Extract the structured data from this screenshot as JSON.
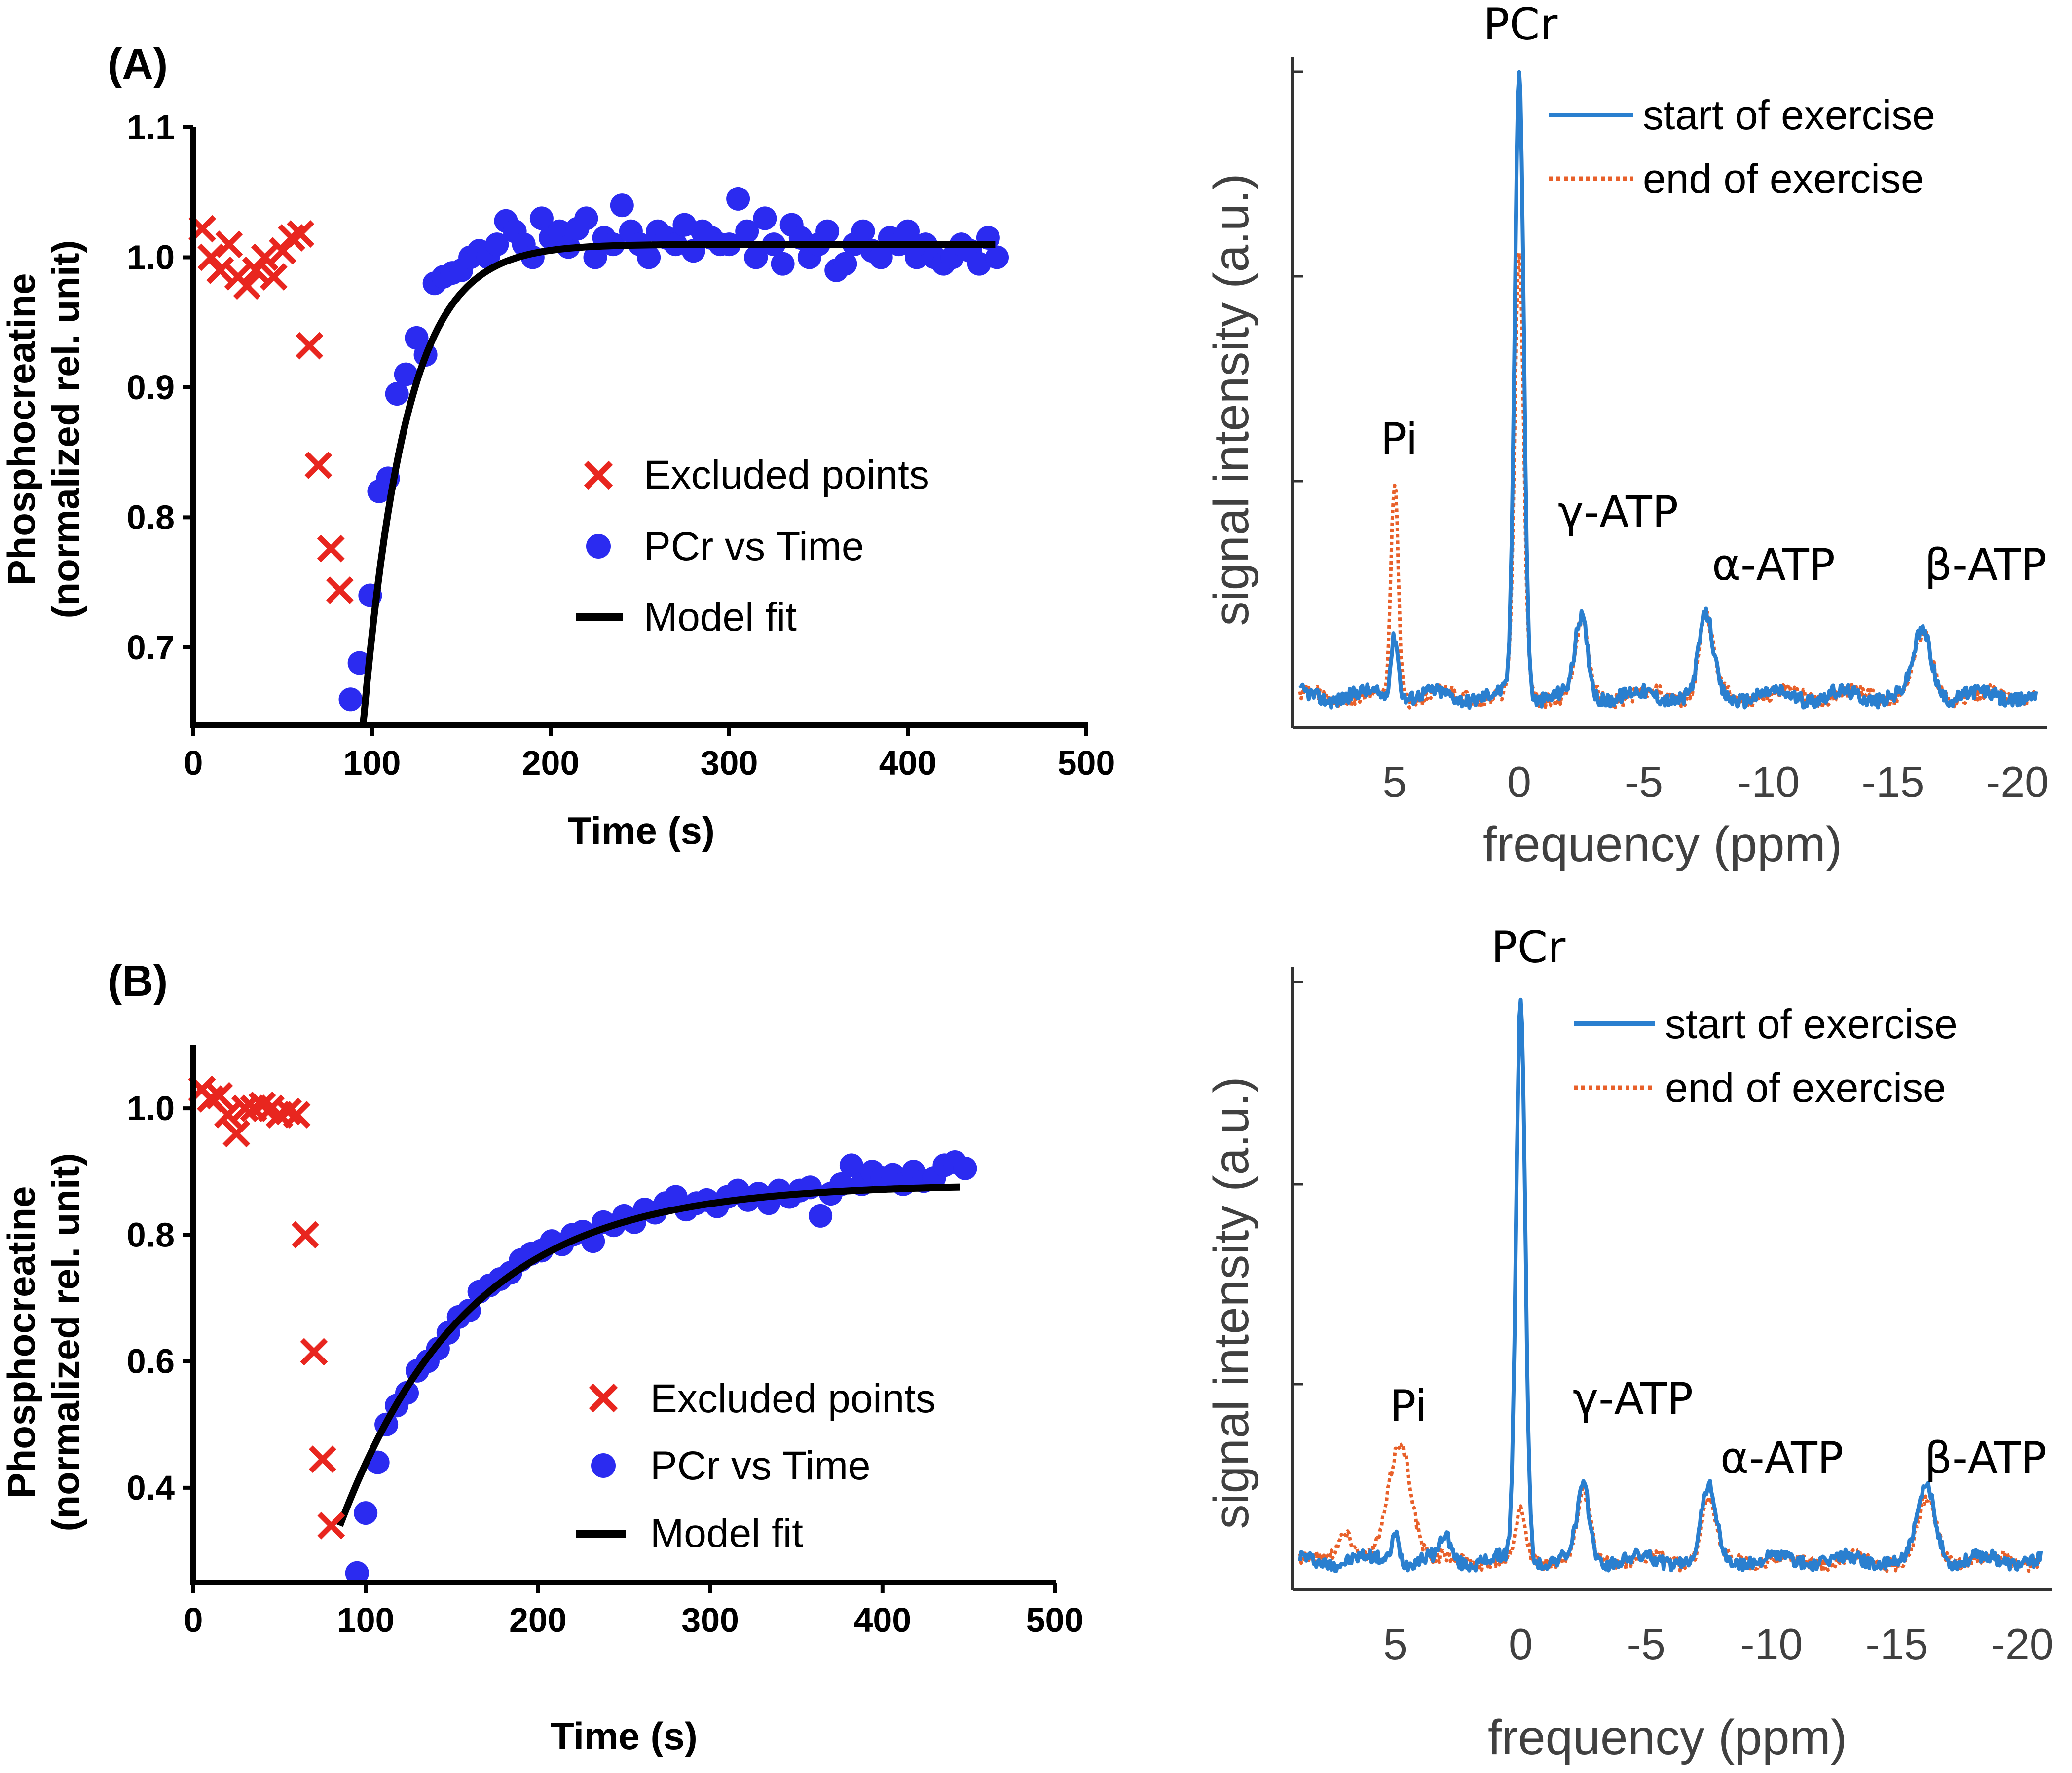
{
  "colors": {
    "excluded": "#e8261f",
    "pcr": "#2b2bf0",
    "fit": "#000000",
    "start": "#2a7fcf",
    "end": "#e8602a"
  },
  "chart_data": [
    {
      "panel": "(A)",
      "type": "scatter",
      "xlabel": "Time (s)",
      "ylabel_line1": "Phosphocreatine",
      "ylabel_line2": "(normalized  rel. unit)",
      "xlim": [
        0,
        500
      ],
      "ylim": [
        0.64,
        1.1
      ],
      "xticks": [
        "0",
        "100",
        "200",
        "300",
        "400",
        "500"
      ],
      "yticks": [
        {
          "v": 0.7,
          "label": "0.7"
        },
        {
          "v": 0.8,
          "label": "0.8"
        },
        {
          "v": 0.9,
          "label": "0.9"
        },
        {
          "v": 1.0,
          "label": "1.0"
        },
        {
          "v": 1.1,
          "label": "1.1"
        }
      ],
      "legend": {
        "excluded": "Excluded points",
        "pcr": "PCr vs Time",
        "fit": "Model fit"
      },
      "fit": {
        "t0": 95,
        "y0": 0.64,
        "yinf": 1.01,
        "tau": 24,
        "tend": 450
      },
      "series": [
        {
          "name": "Excluded points",
          "x": [
            5,
            10,
            15,
            20,
            25,
            30,
            35,
            40,
            45,
            50,
            55,
            60,
            65,
            70,
            77,
            82
          ],
          "y": [
            1.022,
            1.0,
            0.99,
            1.01,
            0.985,
            0.978,
            0.99,
            1.0,
            0.985,
            1.005,
            1.015,
            1.018,
            0.932,
            0.84,
            0.776,
            0.744
          ]
        },
        {
          "name": "PCr vs Time",
          "x": [
            88,
            93,
            99,
            104,
            109,
            114,
            119,
            125,
            130,
            135,
            140,
            145,
            150,
            155,
            160,
            165,
            170,
            175,
            180,
            185,
            190,
            195,
            200,
            205,
            210,
            215,
            220,
            225,
            230,
            235,
            240,
            245,
            250,
            255,
            260,
            265,
            270,
            275,
            280,
            285,
            290,
            295,
            300,
            305,
            310,
            315,
            320,
            325,
            330,
            335,
            340,
            345,
            350,
            355,
            360,
            365,
            370,
            375,
            380,
            385,
            390,
            395,
            400,
            405,
            410,
            415,
            420,
            425,
            430,
            435,
            440,
            445,
            450
          ],
          "y": [
            0.66,
            0.688,
            0.74,
            0.82,
            0.83,
            0.895,
            0.91,
            0.938,
            0.925,
            0.98,
            0.985,
            0.988,
            0.99,
            1.0,
            1.005,
            1.0,
            1.01,
            1.028,
            1.02,
            1.01,
            1.0,
            1.03,
            1.015,
            1.02,
            1.008,
            1.022,
            1.03,
            1.0,
            1.015,
            1.01,
            1.04,
            1.02,
            1.01,
            1.0,
            1.02,
            1.015,
            1.01,
            1.025,
            1.005,
            1.02,
            1.015,
            1.01,
            1.01,
            1.045,
            1.02,
            1.0,
            1.03,
            1.01,
            0.995,
            1.025,
            1.015,
            1.0,
            1.01,
            1.02,
            0.99,
            0.995,
            1.01,
            1.02,
            1.005,
            1.0,
            1.015,
            1.01,
            1.02,
            1.0,
            1.01,
            1.0,
            0.995,
            1.0,
            1.01,
            1.005,
            0.995,
            1.015,
            1.0
          ]
        }
      ]
    },
    {
      "panel": "(B)",
      "type": "scatter",
      "xlabel": "Time (s)",
      "ylabel_line1": "Phosphocreatine",
      "ylabel_line2": "(normalized  rel. unit)",
      "xlim": [
        0,
        500
      ],
      "ylim": [
        0.25,
        1.1
      ],
      "xticks": [
        "0",
        "100",
        "200",
        "300",
        "400",
        "500"
      ],
      "yticks": [
        {
          "v": 0.4,
          "label": "0.4"
        },
        {
          "v": 0.6,
          "label": "0.6"
        },
        {
          "v": 0.8,
          "label": "0.8"
        },
        {
          "v": 1.0,
          "label": "1.0"
        }
      ],
      "legend": {
        "excluded": "Excluded points",
        "pcr": "PCr vs Time",
        "fit": "Model fit"
      },
      "fit": {
        "t0": 85,
        "y0": 0.34,
        "yinf": 0.88,
        "tau": 75,
        "tend": 445
      },
      "series": [
        {
          "name": "Excluded points",
          "x": [
            5,
            10,
            15,
            20,
            25,
            30,
            35,
            40,
            45,
            50,
            55,
            60,
            65,
            70,
            75,
            80
          ],
          "y": [
            1.03,
            1.015,
            1.02,
            0.99,
            0.96,
            1.0,
            1.0,
            1.005,
            1.0,
            0.99,
            0.995,
            0.99,
            0.8,
            0.615,
            0.445,
            0.34
          ]
        },
        {
          "name": "PCr vs Time",
          "x": [
            95,
            100,
            107,
            112,
            118,
            124,
            130,
            136,
            142,
            148,
            154,
            160,
            166,
            172,
            178,
            184,
            190,
            196,
            202,
            208,
            214,
            220,
            226,
            232,
            238,
            244,
            250,
            256,
            262,
            268,
            274,
            280,
            286,
            292,
            298,
            304,
            310,
            316,
            322,
            328,
            334,
            340,
            346,
            352,
            358,
            364,
            370,
            376,
            382,
            388,
            394,
            400,
            406,
            412,
            418,
            424,
            430,
            436,
            442,
            448
          ],
          "y": [
            0.265,
            0.36,
            0.44,
            0.5,
            0.53,
            0.55,
            0.585,
            0.6,
            0.62,
            0.645,
            0.67,
            0.68,
            0.71,
            0.72,
            0.73,
            0.74,
            0.76,
            0.77,
            0.775,
            0.79,
            0.785,
            0.8,
            0.805,
            0.79,
            0.82,
            0.815,
            0.83,
            0.82,
            0.84,
            0.835,
            0.85,
            0.86,
            0.84,
            0.85,
            0.855,
            0.845,
            0.86,
            0.87,
            0.855,
            0.865,
            0.85,
            0.87,
            0.86,
            0.87,
            0.875,
            0.83,
            0.865,
            0.88,
            0.91,
            0.88,
            0.9,
            0.89,
            0.895,
            0.88,
            0.9,
            0.885,
            0.89,
            0.91,
            0.915,
            0.905
          ]
        }
      ]
    },
    {
      "panel": "A-spectrum",
      "type": "line",
      "xlabel": "frequency (ppm)",
      "ylabel": "signal intensity (a.u.)",
      "xlim": [
        9,
        -21
      ],
      "ylim": [
        0,
        1.05
      ],
      "xticks": [
        {
          "v": 5,
          "label": "5"
        },
        {
          "v": 0,
          "label": "0"
        },
        {
          "v": -5,
          "label": "-5"
        },
        {
          "v": -10,
          "label": "-10"
        },
        {
          "v": -15,
          "label": "-15"
        },
        {
          "v": -20,
          "label": "-20"
        }
      ],
      "legend": {
        "start": "start of exercise",
        "end": "end of exercise"
      },
      "peak_labels": {
        "pcr": "PCr",
        "pi": "Pi",
        "gamma": "γ-ATP",
        "alpha": "α-ATP",
        "beta": "β-ATP"
      },
      "series": [
        {
          "name": "start of exercise",
          "baseline": 0.05,
          "peaks": [
            {
              "c": 0,
              "a": 0.98,
              "w": 0.18
            },
            {
              "c": 5.0,
              "a": 0.1,
              "w": 0.15
            },
            {
              "c": -2.5,
              "a": 0.12,
              "w": 0.25
            },
            {
              "c": -7.5,
              "a": 0.12,
              "w": 0.28
            },
            {
              "c": -16.2,
              "a": 0.1,
              "w": 0.35
            }
          ]
        },
        {
          "name": "end of exercise",
          "baseline": 0.05,
          "peaks": [
            {
              "c": 0,
              "a": 0.68,
              "w": 0.18
            },
            {
              "c": 5.0,
              "a": 0.33,
              "w": 0.15
            },
            {
              "c": -2.5,
              "a": 0.11,
              "w": 0.25
            },
            {
              "c": -7.5,
              "a": 0.12,
              "w": 0.28
            },
            {
              "c": -16.2,
              "a": 0.09,
              "w": 0.35
            }
          ]
        }
      ]
    },
    {
      "panel": "B-spectrum",
      "type": "line",
      "xlabel": "frequency (ppm)",
      "ylabel": "signal intensity (a.u.)",
      "xlim": [
        9,
        -21
      ],
      "ylim": [
        0,
        1.05
      ],
      "xticks": [
        {
          "v": 5,
          "label": "5"
        },
        {
          "v": 0,
          "label": "0"
        },
        {
          "v": -5,
          "label": "-5"
        },
        {
          "v": -10,
          "label": "-10"
        },
        {
          "v": -15,
          "label": "-15"
        },
        {
          "v": -20,
          "label": "-20"
        }
      ],
      "legend": {
        "start": "start of exercise",
        "end": "end of exercise"
      },
      "peak_labels": {
        "pcr": "PCr",
        "pi": "Pi",
        "gamma": "γ-ATP",
        "alpha": "α-ATP",
        "beta": "β-ATP"
      },
      "series": [
        {
          "name": "start of exercise",
          "baseline": 0.05,
          "peaks": [
            {
              "c": 0,
              "a": 0.95,
              "w": 0.18
            },
            {
              "c": 5.0,
              "a": 0.05,
              "w": 0.15
            },
            {
              "c": 3.0,
              "a": 0.04,
              "w": 0.2
            },
            {
              "c": -2.5,
              "a": 0.12,
              "w": 0.25
            },
            {
              "c": -7.5,
              "a": 0.12,
              "w": 0.28
            },
            {
              "c": -16.2,
              "a": 0.12,
              "w": 0.35
            }
          ]
        },
        {
          "name": "end of exercise",
          "baseline": 0.05,
          "peaks": [
            {
              "c": 0,
              "a": 0.08,
              "w": 0.2
            },
            {
              "c": 4.8,
              "a": 0.2,
              "w": 0.45
            },
            {
              "c": 7.0,
              "a": 0.05,
              "w": 0.35
            },
            {
              "c": -2.5,
              "a": 0.11,
              "w": 0.25
            },
            {
              "c": -7.5,
              "a": 0.1,
              "w": 0.28
            },
            {
              "c": -16.2,
              "a": 0.1,
              "w": 0.35
            }
          ]
        }
      ]
    }
  ]
}
